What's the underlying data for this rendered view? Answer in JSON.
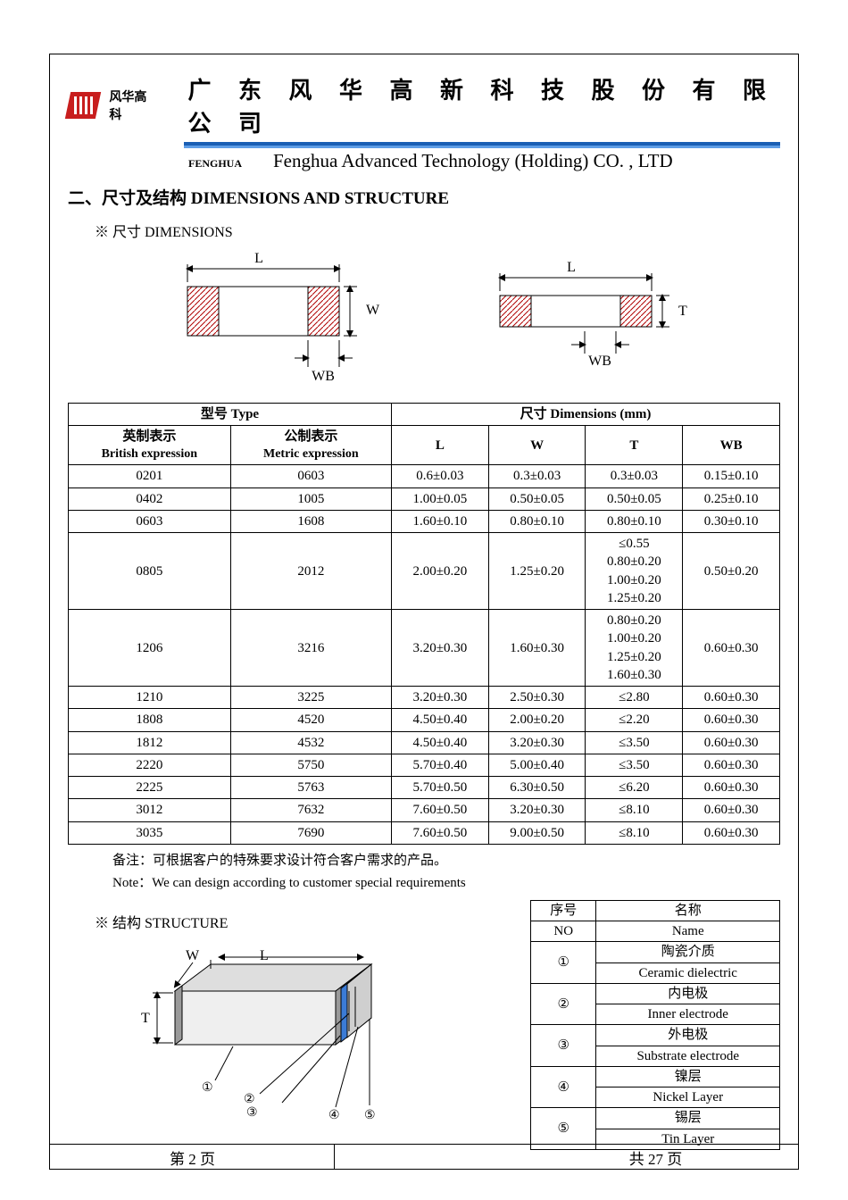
{
  "header": {
    "brand_cn": "风华高科",
    "title_cn": "广 东 风 华 高 新 科 技 股 份 有 限 公 司",
    "fenghua_label": "FENGHUA",
    "title_en": "Fenghua Advanced Technology (Holding) CO. , LTD"
  },
  "section": {
    "title": "二、尺寸及结构    DIMENSIONS AND STRUCTURE",
    "dims_sub": "※ 尺寸 DIMENSIONS",
    "struct_sub": "※ 结构 STRUCTURE"
  },
  "diagram_labels": {
    "L": "L",
    "W": "W",
    "T": "T",
    "WB": "WB"
  },
  "dim_table": {
    "header_type": "型号 Type",
    "header_dims": "尺寸     Dimensions       (mm)",
    "col_british_cn": "英制表示",
    "col_british_en": "British expression",
    "col_metric_cn": "公制表示",
    "col_metric_en": "Metric expression",
    "col_L": "L",
    "col_W": "W",
    "col_T": "T",
    "col_WB": "WB",
    "rows": [
      {
        "b": "0201",
        "m": "0603",
        "L": "0.6±0.03",
        "W": "0.3±0.03",
        "T": "0.3±0.03",
        "WB": "0.15±0.10"
      },
      {
        "b": "0402",
        "m": "1005",
        "L": "1.00±0.05",
        "W": "0.50±0.05",
        "T": "0.50±0.05",
        "WB": "0.25±0.10"
      },
      {
        "b": "0603",
        "m": "1608",
        "L": "1.60±0.10",
        "W": "0.80±0.10",
        "T": "0.80±0.10",
        "WB": "0.30±0.10"
      },
      {
        "b": "0805",
        "m": "2012",
        "L": "2.00±0.20",
        "W": "1.25±0.20",
        "T": "≤0.55\n0.80±0.20\n1.00±0.20\n1.25±0.20",
        "WB": "0.50±0.20"
      },
      {
        "b": "1206",
        "m": "3216",
        "L": "3.20±0.30",
        "W": "1.60±0.30",
        "T": "0.80±0.20\n1.00±0.20\n1.25±0.20\n1.60±0.30",
        "WB": "0.60±0.30"
      },
      {
        "b": "1210",
        "m": "3225",
        "L": "3.20±0.30",
        "W": "2.50±0.30",
        "T": "≤2.80",
        "WB": "0.60±0.30"
      },
      {
        "b": "1808",
        "m": "4520",
        "L": "4.50±0.40",
        "W": "2.00±0.20",
        "T": "≤2.20",
        "WB": "0.60±0.30"
      },
      {
        "b": "1812",
        "m": "4532",
        "L": "4.50±0.40",
        "W": "3.20±0.30",
        "T": "≤3.50",
        "WB": "0.60±0.30"
      },
      {
        "b": "2220",
        "m": "5750",
        "L": "5.70±0.40",
        "W": "5.00±0.40",
        "T": "≤3.50",
        "WB": "0.60±0.30"
      },
      {
        "b": "2225",
        "m": "5763",
        "L": "5.70±0.50",
        "W": "6.30±0.50",
        "T": "≤6.20",
        "WB": "0.60±0.30"
      },
      {
        "b": "3012",
        "m": "7632",
        "L": "7.60±0.50",
        "W": "3.20±0.30",
        "T": "≤8.10",
        "WB": "0.60±0.30"
      },
      {
        "b": "3035",
        "m": "7690",
        "L": "7.60±0.50",
        "W": "9.00±0.50",
        "T": "≤8.10",
        "WB": "0.60±0.30"
      }
    ]
  },
  "notes": {
    "cn": "备注：可根据客户的特殊要求设计符合客户需求的产品。",
    "en": "Note：We can design according to customer special requirements"
  },
  "structure_table": {
    "col_no_cn": "序号",
    "col_no_en": "NO",
    "col_name_cn": "名称",
    "col_name_en": "Name",
    "rows": [
      {
        "no": "①",
        "cn": "陶瓷介质",
        "en": "Ceramic    dielectric"
      },
      {
        "no": "②",
        "cn": "内电极",
        "en": "Inner    electrode"
      },
      {
        "no": "③",
        "cn": "外电极",
        "en": "Substrate    electrode"
      },
      {
        "no": "④",
        "cn": "镍层",
        "en": "Nickel Layer"
      },
      {
        "no": "⑤",
        "cn": "锡层",
        "en": "Tin Layer"
      }
    ]
  },
  "struct_labels": {
    "W": "W",
    "L": "L",
    "T": "T"
  },
  "struct_callouts": [
    "①",
    "②",
    "③",
    "④",
    "⑤"
  ],
  "footer": {
    "left": "第    2    页",
    "right": "共   27   页"
  },
  "colors": {
    "brand_red": "#c81e1e",
    "blue_top": "#1a5fb4",
    "blue_bottom": "#5e9de6",
    "hatch": "#b00000",
    "end_blue": "#3b7bd6",
    "end_grey": "#9a9a9a",
    "body_fill": "#dedede"
  }
}
